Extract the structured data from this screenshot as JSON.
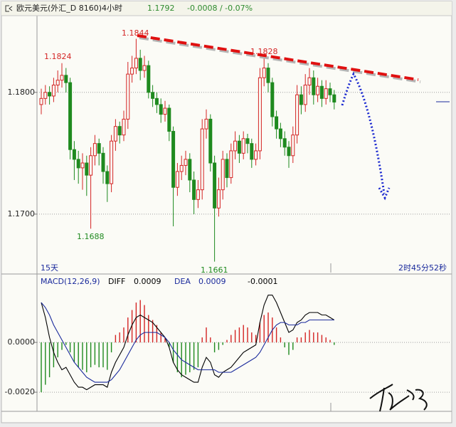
{
  "header": {
    "title": "欧元美元(外汇_D 8160)4小时",
    "price": "1.1792",
    "change": "-0.0008 / -0.07%"
  },
  "footer": {
    "period": "15天",
    "countdown": "2时45分52秒"
  },
  "chart_data": [
    {
      "type": "candlestick",
      "up_color": "#d42424",
      "down_color": "#1f8a1f",
      "ylim": [
        1.1652,
        1.1863
      ],
      "yticks": [
        {
          "value": 1.18,
          "label": "1.1800"
        },
        {
          "value": 1.17,
          "label": "1.1700"
        }
      ],
      "grid": true,
      "annotations": [
        "1.1824",
        "1.1844",
        "1.1828",
        "1.1688",
        "1.1661"
      ],
      "open": [
        1.179,
        1.1795,
        1.18,
        1.1797,
        1.1806,
        1.181,
        1.1814,
        1.1808,
        1.1753,
        1.1745,
        1.1738,
        1.1742,
        1.1732,
        1.1748,
        1.1758,
        1.175,
        1.1735,
        1.1725,
        1.176,
        1.1772,
        1.1765,
        1.1778,
        1.1815,
        1.182,
        1.1828,
        1.1818,
        1.1822,
        1.18,
        1.1795,
        1.179,
        1.1782,
        1.1787,
        1.1768,
        1.1722,
        1.1735,
        1.174,
        1.1745,
        1.1728,
        1.1712,
        1.172,
        1.177,
        1.1778,
        1.1742,
        1.1705,
        1.172,
        1.1745,
        1.173,
        1.1752,
        1.176,
        1.175,
        1.1762,
        1.1758,
        1.1745,
        1.1752,
        1.1812,
        1.182,
        1.1808,
        1.178,
        1.177,
        1.1762,
        1.1755,
        1.1748,
        1.1765,
        1.1798,
        1.179,
        1.1806,
        1.1812,
        1.1798,
        1.1805,
        1.1795,
        1.1803,
        1.1798
      ],
      "high": [
        1.1803,
        1.1806,
        1.1805,
        1.1812,
        1.1818,
        1.1824,
        1.182,
        1.1812,
        1.176,
        1.1752,
        1.175,
        1.1748,
        1.1755,
        1.1765,
        1.1762,
        1.1755,
        1.174,
        1.1765,
        1.1778,
        1.1776,
        1.1785,
        1.1825,
        1.183,
        1.1844,
        1.1835,
        1.183,
        1.1826,
        1.1806,
        1.18,
        1.1795,
        1.1793,
        1.179,
        1.1772,
        1.1742,
        1.1748,
        1.1752,
        1.175,
        1.1735,
        1.1728,
        1.1778,
        1.1786,
        1.1782,
        1.1748,
        1.173,
        1.1752,
        1.175,
        1.1758,
        1.1768,
        1.1765,
        1.1768,
        1.1766,
        1.1762,
        1.1758,
        1.182,
        1.1828,
        1.1824,
        1.1812,
        1.1785,
        1.1775,
        1.1768,
        1.176,
        1.1772,
        1.1806,
        1.1805,
        1.1815,
        1.182,
        1.1818,
        1.1812,
        1.181,
        1.181,
        1.1808,
        1.1802
      ],
      "low": [
        1.1782,
        1.179,
        1.179,
        1.1792,
        1.18,
        1.1804,
        1.18,
        1.1745,
        1.1728,
        1.1725,
        1.172,
        1.1715,
        1.1688,
        1.174,
        1.174,
        1.1725,
        1.171,
        1.1718,
        1.1752,
        1.1758,
        1.176,
        1.177,
        1.1808,
        1.1815,
        1.181,
        1.1812,
        1.1795,
        1.1788,
        1.1783,
        1.1775,
        1.1776,
        1.176,
        1.169,
        1.1715,
        1.1728,
        1.1732,
        1.1718,
        1.17,
        1.1705,
        1.1712,
        1.1762,
        1.1735,
        1.1661,
        1.1698,
        1.1712,
        1.1722,
        1.1725,
        1.1745,
        1.1742,
        1.1745,
        1.175,
        1.1738,
        1.174,
        1.1745,
        1.1805,
        1.18,
        1.1772,
        1.1762,
        1.1755,
        1.1748,
        1.1738,
        1.1742,
        1.1758,
        1.1782,
        1.1784,
        1.1798,
        1.179,
        1.1792,
        1.1788,
        1.179,
        1.1792,
        1.1786
      ],
      "close": [
        1.1795,
        1.18,
        1.1797,
        1.1806,
        1.181,
        1.1814,
        1.1808,
        1.1753,
        1.1745,
        1.1738,
        1.1742,
        1.1732,
        1.1748,
        1.1758,
        1.175,
        1.1735,
        1.1725,
        1.176,
        1.1772,
        1.1765,
        1.1778,
        1.1815,
        1.182,
        1.1828,
        1.1818,
        1.1822,
        1.18,
        1.1795,
        1.179,
        1.1782,
        1.1787,
        1.1768,
        1.1722,
        1.1735,
        1.174,
        1.1745,
        1.1728,
        1.1712,
        1.172,
        1.177,
        1.1778,
        1.1742,
        1.1705,
        1.172,
        1.1745,
        1.173,
        1.1752,
        1.176,
        1.175,
        1.1762,
        1.1758,
        1.1745,
        1.1752,
        1.1812,
        1.182,
        1.1808,
        1.178,
        1.177,
        1.1762,
        1.1755,
        1.1748,
        1.1765,
        1.1798,
        1.179,
        1.1806,
        1.1812,
        1.1798,
        1.1805,
        1.1795,
        1.1803,
        1.1798,
        1.1792
      ]
    },
    {
      "type": "macd",
      "title": "MACD(12,26,9)",
      "ylim": [
        -0.00274,
        0.00269
      ],
      "yticks": [
        {
          "value": 0,
          "label": "0.0000"
        },
        {
          "value": -0.002,
          "label": "-0.0020"
        }
      ],
      "grid": true,
      "histogram": {
        "up_color": "#d42424",
        "down_color": "#1f8a1f",
        "current_label": "-0.0001",
        "values": [
          -0.002,
          -0.0017,
          -0.0014,
          -0.001,
          -0.0006,
          -0.0003,
          -0.0001,
          -0.0004,
          -0.0008,
          -0.001,
          -0.0011,
          -0.0012,
          -0.001,
          -0.0009,
          -0.001,
          -0.001,
          -0.0011,
          -0.0004,
          0.0003,
          0.0004,
          0.0006,
          0.001,
          0.0013,
          0.0016,
          0.0017,
          0.0015,
          0.0011,
          0.0009,
          0.0007,
          0.0004,
          0.0002,
          -0.0002,
          -0.0008,
          -0.0012,
          -0.0014,
          -0.0013,
          -0.0012,
          -0.0011,
          -0.001,
          0.0002,
          0.0006,
          0.0002,
          -0.0004,
          -0.0003,
          -0.0001,
          0.0001,
          0.0003,
          0.0005,
          0.0006,
          0.0007,
          0.0006,
          0.0004,
          0.0003,
          0.0008,
          0.0011,
          0.0012,
          0.001,
          0.0006,
          0.0002,
          -0.0002,
          -0.0005,
          -0.0003,
          0.0002,
          0.0002,
          0.0004,
          0.0005,
          0.0004,
          0.0004,
          0.0003,
          0.0002,
          0.0001,
          -0.0001
        ]
      },
      "series": [
        {
          "name": "DIFF",
          "color": "#000000",
          "current_label": "0.0009",
          "values": [
            0.0016,
            0.001,
            0.0002,
            -0.0004,
            -0.0008,
            -0.0011,
            -0.001,
            -0.0013,
            -0.0016,
            -0.0018,
            -0.0018,
            -0.0019,
            -0.0018,
            -0.0017,
            -0.0017,
            -0.0017,
            -0.0018,
            -0.0012,
            -0.0008,
            -0.0005,
            -0.0002,
            0.0003,
            0.0007,
            0.001,
            0.0011,
            0.001,
            0.0009,
            0.0008,
            0.0006,
            0.0004,
            0.0002,
            -0.0002,
            -0.0008,
            -0.0011,
            -0.0013,
            -0.0014,
            -0.0015,
            -0.0016,
            -0.0016,
            -0.001,
            -0.0006,
            -0.0008,
            -0.0013,
            -0.0014,
            -0.0012,
            -0.0011,
            -0.001,
            -0.0008,
            -0.0006,
            -0.0004,
            -0.0003,
            -0.0002,
            -0.0001,
            0.0008,
            0.0015,
            0.0019,
            0.0019,
            0.0016,
            0.0012,
            0.0008,
            0.0004,
            0.0005,
            0.0008,
            0.0009,
            0.0011,
            0.0012,
            0.0012,
            0.0012,
            0.0011,
            0.0011,
            0.001,
            0.0009
          ]
        },
        {
          "name": "DEA",
          "color": "#1a2a9c",
          "current_label": "0.0009",
          "values": [
            0.0016,
            0.0014,
            0.0011,
            0.0007,
            0.0004,
            0.0001,
            -0.0002,
            -0.0005,
            -0.0008,
            -0.001,
            -0.0012,
            -0.0014,
            -0.0015,
            -0.0016,
            -0.0016,
            -0.0016,
            -0.0016,
            -0.0015,
            -0.0013,
            -0.0011,
            -0.0008,
            -0.0005,
            -0.0002,
            0.0001,
            0.0003,
            0.0004,
            0.0004,
            0.0004,
            0.0004,
            0.0003,
            0.0002,
            0.0,
            -0.0003,
            -0.0005,
            -0.0007,
            -0.0008,
            -0.0009,
            -0.001,
            -0.0011,
            -0.0011,
            -0.0011,
            -0.0011,
            -0.0011,
            -0.0012,
            -0.0012,
            -0.0012,
            -0.0012,
            -0.0011,
            -0.001,
            -0.0009,
            -0.0008,
            -0.0007,
            -0.0006,
            -0.0004,
            -0.0001,
            0.0002,
            0.0005,
            0.0007,
            0.0008,
            0.0008,
            0.0007,
            0.0007,
            0.0007,
            0.0008,
            0.0008,
            0.0009,
            0.0009,
            0.0009,
            0.0009,
            0.0009,
            0.0009,
            0.0009
          ]
        }
      ]
    }
  ]
}
